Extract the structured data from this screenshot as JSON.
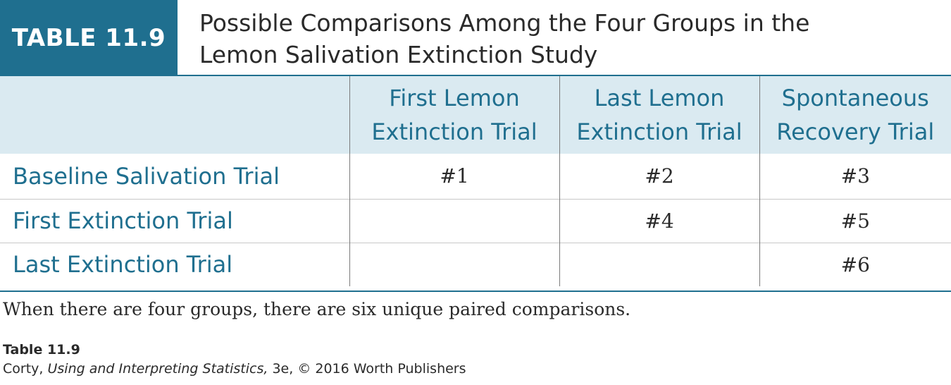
{
  "header": {
    "badge": "TABLE 11.9",
    "title_line1": "Possible Comparisons Among the Four Groups in the",
    "title_line2": "Lemon Salivation Extinction Study"
  },
  "table": {
    "columns": [
      {
        "line1": "First Lemon",
        "line2": "Extinction Trial"
      },
      {
        "line1": "Last Lemon",
        "line2": "Extinction Trial"
      },
      {
        "line1": "Spontaneous",
        "line2": "Recovery Trial"
      }
    ],
    "rows": [
      {
        "label": "Baseline Salivation Trial",
        "cells": [
          "#1",
          "#2",
          "#3"
        ]
      },
      {
        "label": "First Extinction Trial",
        "cells": [
          "",
          "#4",
          "#5"
        ]
      },
      {
        "label": "Last Extinction Trial",
        "cells": [
          "",
          "",
          "#6"
        ]
      }
    ]
  },
  "note": "When there are four groups, there are six unique paired comparisons.",
  "footer": {
    "ref_title": "Table 11.9",
    "author": "Corty, ",
    "book": "Using and Interpreting Statistics,",
    "edition": " 3e, © 2016 Worth Publishers"
  },
  "colors": {
    "accent": "#1f6f8f",
    "header_fill": "#daeaf1"
  }
}
